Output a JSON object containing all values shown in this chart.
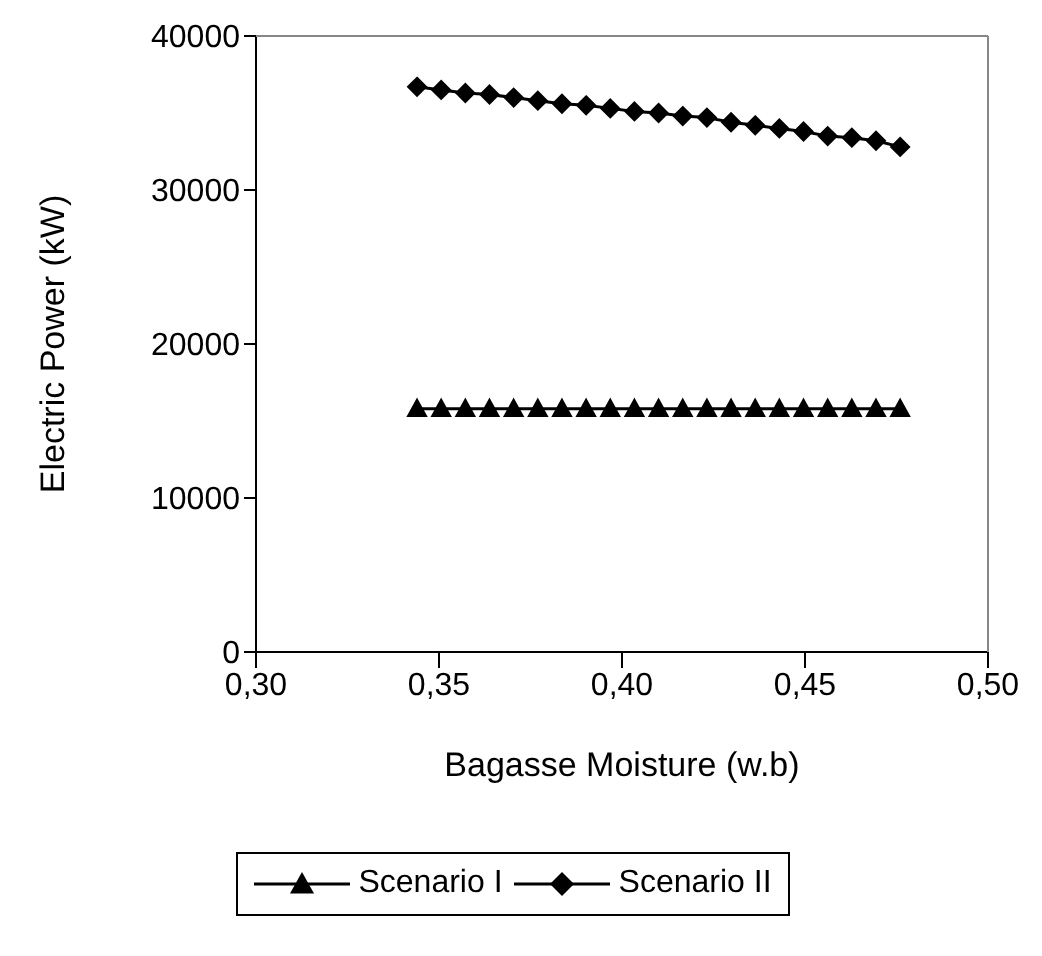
{
  "chart_data": {
    "type": "line",
    "xlabel": "Bagasse Moisture (w.b)",
    "ylabel": "Electric Power (kW)",
    "x": [
      0.344,
      0.3506,
      0.3572,
      0.3638,
      0.3704,
      0.377,
      0.3836,
      0.3902,
      0.3968,
      0.4034,
      0.41,
      0.4166,
      0.4232,
      0.4298,
      0.4364,
      0.443,
      0.4496,
      0.4562,
      0.4628,
      0.4694,
      0.476
    ],
    "series": [
      {
        "name": "Scenario I",
        "color": "#000000",
        "marker": "triangle",
        "values": [
          15800,
          15800,
          15800,
          15800,
          15800,
          15800,
          15800,
          15800,
          15800,
          15800,
          15800,
          15800,
          15800,
          15800,
          15800,
          15800,
          15800,
          15800,
          15800,
          15800,
          15800
        ]
      },
      {
        "name": "Scenario II",
        "color": "#000000",
        "marker": "diamond",
        "values": [
          36700,
          36500,
          36300,
          36200,
          36000,
          35800,
          35600,
          35500,
          35300,
          35100,
          35000,
          34800,
          34700,
          34400,
          34200,
          34000,
          33800,
          33500,
          33400,
          33200,
          32800
        ]
      }
    ],
    "xlim": [
      0.3,
      0.5
    ],
    "xticks": [
      {
        "value": 0.3,
        "label": "0,30"
      },
      {
        "value": 0.35,
        "label": "0,35"
      },
      {
        "value": 0.4,
        "label": "0,40"
      },
      {
        "value": 0.45,
        "label": "0,45"
      },
      {
        "value": 0.5,
        "label": "0,50"
      }
    ],
    "ylim": [
      0,
      40000
    ],
    "yticks": [
      0,
      10000,
      20000,
      30000,
      40000
    ],
    "grid": false,
    "legend": "bottom",
    "line_style": "solid"
  }
}
